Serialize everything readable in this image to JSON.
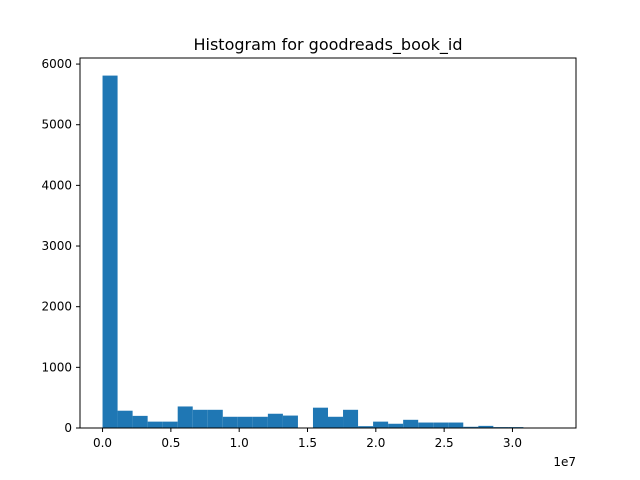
{
  "chart_data": {
    "type": "bar",
    "title": "Histogram for goodreads_book_id",
    "xlabel": "",
    "ylabel": "",
    "x_offset_text": "1e7",
    "xlim": [
      -1650000,
      34650000
    ],
    "ylim": [
      0,
      6100
    ],
    "bin_start": 1,
    "bin_width": 1100000,
    "bar_color": "#1f77b4",
    "values": [
      5810,
      285,
      200,
      105,
      105,
      355,
      300,
      300,
      185,
      185,
      185,
      235,
      205,
      5,
      335,
      185,
      300,
      30,
      105,
      70,
      135,
      90,
      90,
      90,
      20,
      35,
      15,
      15,
      3,
      3
    ],
    "x_ticks": [
      {
        "value": 0,
        "label": "0.0"
      },
      {
        "value": 5000000,
        "label": "0.5"
      },
      {
        "value": 10000000,
        "label": "1.0"
      },
      {
        "value": 15000000,
        "label": "1.5"
      },
      {
        "value": 20000000,
        "label": "2.0"
      },
      {
        "value": 25000000,
        "label": "2.5"
      },
      {
        "value": 30000000,
        "label": "3.0"
      }
    ],
    "y_ticks": [
      {
        "value": 0,
        "label": "0"
      },
      {
        "value": 1000,
        "label": "1000"
      },
      {
        "value": 2000,
        "label": "2000"
      },
      {
        "value": 3000,
        "label": "3000"
      },
      {
        "value": 4000,
        "label": "4000"
      },
      {
        "value": 5000,
        "label": "5000"
      },
      {
        "value": 6000,
        "label": "6000"
      }
    ],
    "grid": false,
    "legend": "none"
  }
}
